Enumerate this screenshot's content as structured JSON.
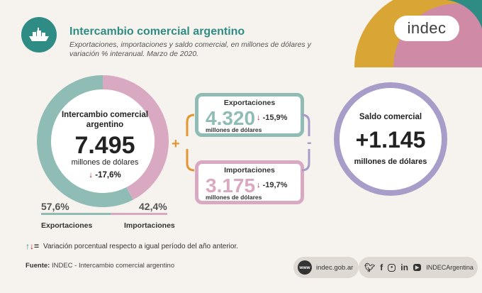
{
  "header": {
    "title": "Intercambio comercial argentino",
    "subtitle": "Exportaciones, importaciones y saldo comercial, en millones de dólares y variación % interanual. Marzo de 2020.",
    "logo_text": "indec"
  },
  "donut": {
    "title": "Intercambio comercial argentino",
    "value": "7.495",
    "unit": "millones de dólares",
    "variation": "-17,6%",
    "exports_share": 57.6,
    "imports_share": 42.4
  },
  "shares": {
    "exports_pct": "57,6%",
    "imports_pct": "42,4%",
    "exports_label": "Exportaciones",
    "imports_label": "Importaciones"
  },
  "exports_box": {
    "title": "Exportaciones",
    "value": "4.320",
    "unit": "millones de dólares",
    "variation": "-15,9%"
  },
  "imports_box": {
    "title": "Importaciones",
    "value": "3.175",
    "unit": "millones de dólares",
    "variation": "-19,7%"
  },
  "operators": {
    "plus": "+",
    "minus": "-"
  },
  "saldo": {
    "title": "Saldo comercial",
    "value": "+1.145",
    "unit": "millones de dólares"
  },
  "footer": {
    "legend_text": "Variación porcentual respecto a igual período del año anterior.",
    "source_label": "Fuente:",
    "source_text": "INDEC - Intercambio comercial argentino",
    "website": "indec.gob.ar",
    "www_badge": "www",
    "social_handle": "INDECArgentina"
  },
  "colors": {
    "teal": "#8fbcb5",
    "pink": "#d9a9c2",
    "purple": "#a89cc8",
    "orange": "#e49632",
    "title_green": "#2f8c84",
    "red": "#b01d1d"
  },
  "icons": [
    "ship-icon",
    "down-arrow-icon",
    "up-down-arrows-icon",
    "twitter-icon",
    "facebook-icon",
    "instagram-icon",
    "linkedin-icon",
    "youtube-icon"
  ]
}
